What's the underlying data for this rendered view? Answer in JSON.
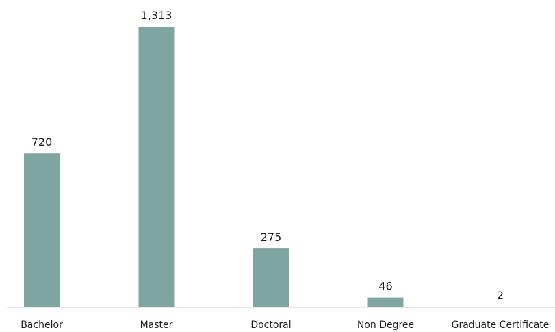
{
  "chart_data": {
    "type": "bar",
    "categories": [
      "Bachelor",
      "Master",
      "Doctoral",
      "Non Degree",
      "Graduate Certificate"
    ],
    "values": [
      720,
      1313,
      275,
      46,
      2
    ],
    "value_labels": [
      "720",
      "1,313",
      "275",
      "46",
      "2"
    ],
    "title": "",
    "xlabel": "",
    "ylabel": "",
    "ylim": [
      0,
      1313
    ],
    "grid": false,
    "legend": "none",
    "bar_color": "#7fa5a2",
    "axis_color": "#d0d0d0"
  }
}
